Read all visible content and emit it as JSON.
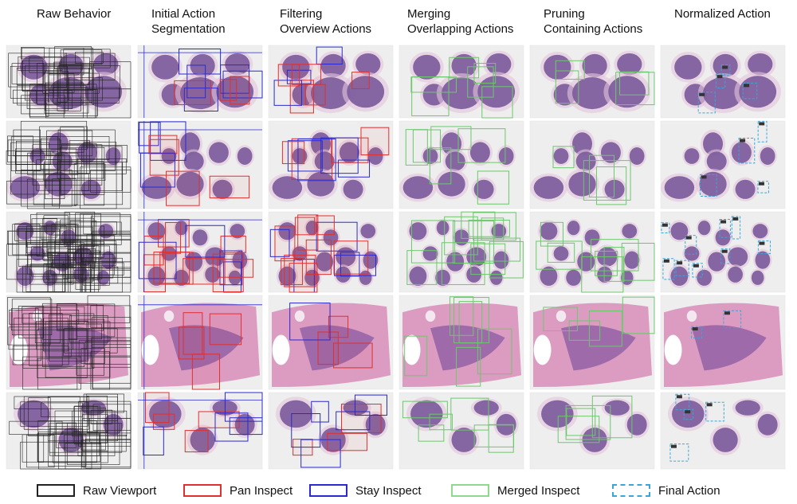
{
  "columns": [
    {
      "key": "raw",
      "lines": [
        "Raw Behavior"
      ]
    },
    {
      "key": "initial",
      "lines": [
        "Initial Action",
        "Segmentation"
      ]
    },
    {
      "key": "filter",
      "lines": [
        "Filtering",
        "Overview Actions"
      ]
    },
    {
      "key": "merge",
      "lines": [
        "Merging",
        "Overlapping Actions"
      ]
    },
    {
      "key": "prune",
      "lines": [
        "Pruning",
        "Containing Actions"
      ]
    },
    {
      "key": "norm",
      "lines": [
        "Normalized Action"
      ]
    }
  ],
  "legend": [
    {
      "key": "raw_viewport",
      "label": "Raw Viewport",
      "color": "#222222",
      "style": "solid"
    },
    {
      "key": "pan_inspect",
      "label": "Pan Inspect",
      "color": "#e03030",
      "style": "solid"
    },
    {
      "key": "stay_inspect",
      "label": "Stay Inspect",
      "color": "#2a2ad0",
      "style": "solid"
    },
    {
      "key": "merged_inspect",
      "label": "Merged Inspect",
      "color": "#6cc86c",
      "style": "solid"
    },
    {
      "key": "final_action",
      "label": "Final Action",
      "color": "#3aa6d8",
      "style": "dashed"
    }
  ],
  "rows": [
    {
      "key": "row1",
      "tissue": "multi-blob-6"
    },
    {
      "key": "row2",
      "tissue": "multi-blob-8"
    },
    {
      "key": "row3",
      "tissue": "multi-blob-12"
    },
    {
      "key": "row4",
      "tissue": "large-section"
    },
    {
      "key": "row5",
      "tissue": "two-blob-sparse"
    }
  ]
}
